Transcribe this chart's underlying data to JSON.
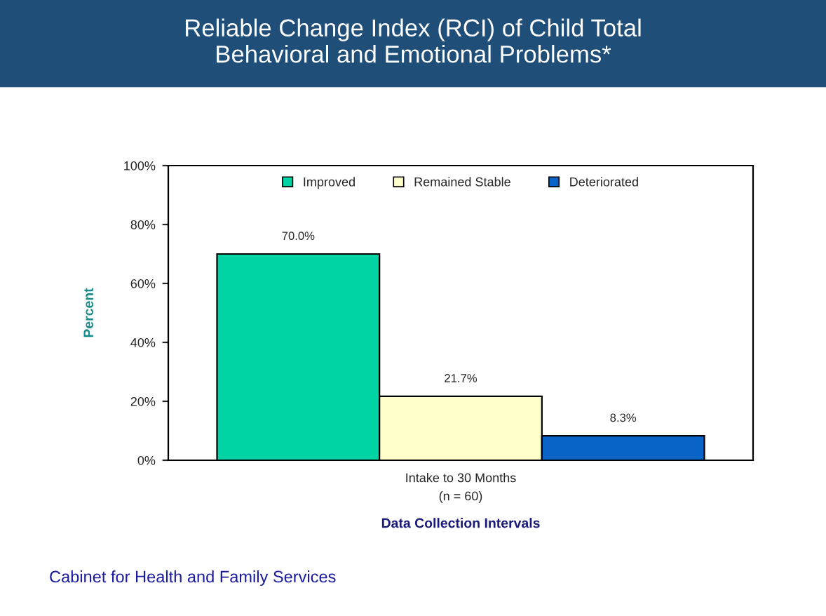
{
  "chart_data": {
    "type": "bar",
    "title": "Reliable Change Index (RCI) of Child Total\nBehavioral and Emotional Problems*",
    "categories": [
      "Intake to 30 Months"
    ],
    "xlabel": "Data Collection Intervals",
    "ylabel": "Percent",
    "series": [
      {
        "name": "Improved",
        "color": "#00d4a4",
        "values": [
          70.0
        ],
        "value_labels": [
          "70.0%"
        ]
      },
      {
        "name": "Remained Stable",
        "color": "#ffffcc",
        "values": [
          21.7
        ],
        "value_labels": [
          "21.7%"
        ]
      },
      {
        "name": "Deteriorated",
        "color": "#0a64c8",
        "values": [
          8.3
        ],
        "value_labels": [
          "8.3%"
        ]
      }
    ],
    "ylim": [
      0,
      100
    ],
    "yticks": [
      {
        "value": 0,
        "label": "0%"
      },
      {
        "value": 20,
        "label": "20%"
      },
      {
        "value": 40,
        "label": "40%"
      },
      {
        "value": 60,
        "label": "60%"
      },
      {
        "value": 80,
        "label": "80%"
      },
      {
        "value": 100,
        "label": "100%"
      }
    ],
    "grid": false,
    "legend": "top",
    "annotations": [
      "(n = 60)",
      "Cabinet for Health and Family Services"
    ]
  }
}
